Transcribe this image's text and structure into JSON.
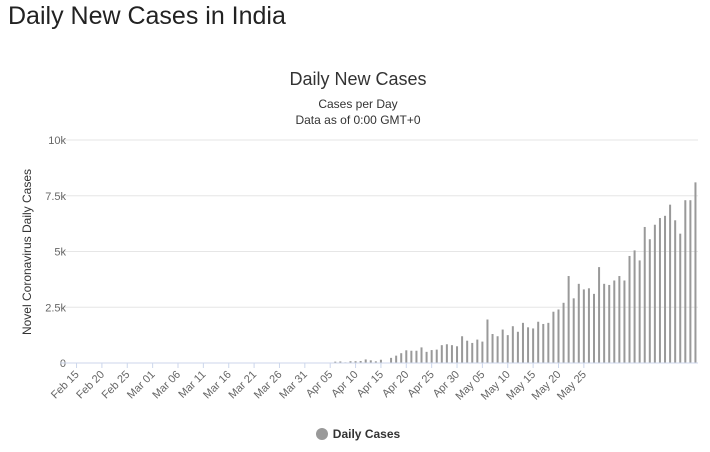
{
  "page": {
    "heading": "Daily New Cases in India"
  },
  "chart_data": {
    "type": "bar",
    "title": "Daily New Cases",
    "subtitle_lines": [
      "Cases per Day",
      "Data as of 0:00 GMT+0"
    ],
    "ylabel": "Novel Coronavirus Daily Cases",
    "xlabel": "",
    "ylim": [
      0,
      10000
    ],
    "y_ticks": [
      0,
      2500,
      5000,
      7500,
      10000
    ],
    "y_tick_labels": [
      "0",
      "2.5k",
      "5k",
      "7.5k",
      "10k"
    ],
    "x_tick_labels": [
      "Feb 15",
      "Feb 20",
      "Feb 25",
      "Mar 01",
      "Mar 06",
      "Mar 11",
      "Mar 16",
      "Mar 21",
      "Mar 26",
      "Mar 31",
      "Apr 05",
      "Apr 10",
      "Apr 15",
      "Apr 20",
      "Apr 25",
      "Apr 30",
      "May 05",
      "May 10",
      "May 15",
      "May 20",
      "May 25"
    ],
    "x_start": "Feb 15",
    "x_end": "May 29",
    "grid": true,
    "legend_position": "bottom-center",
    "series": [
      {
        "name": "Daily Cases",
        "color": "#999999",
        "values": [
          0,
          0,
          0,
          0,
          0,
          0,
          0,
          0,
          0,
          0,
          0,
          0,
          0,
          0,
          0,
          0,
          0,
          0,
          0,
          0,
          0,
          0,
          0,
          0,
          0,
          0,
          0,
          0,
          0,
          0,
          0,
          0,
          0,
          0,
          0,
          0,
          0,
          0,
          0,
          0,
          0,
          0,
          0,
          0,
          0,
          0,
          0,
          0,
          0,
          0,
          0,
          60,
          70,
          30,
          80,
          80,
          90,
          160,
          120,
          75,
          146,
          20,
          230,
          330,
          440,
          570,
          550,
          550,
          700,
          500,
          580,
          600,
          800,
          840,
          800,
          750,
          1200,
          1000,
          900,
          1050,
          960,
          1950,
          1300,
          1200,
          1500,
          1250,
          1650,
          1400,
          1800,
          1600,
          1550,
          1850,
          1750,
          1800,
          2300,
          2400,
          2700,
          3900,
          2900,
          3550,
          3300,
          3350,
          3100,
          4300,
          3550,
          3500,
          3700,
          3900,
          3700,
          4800,
          5050,
          4600,
          6100,
          5550,
          6200,
          6500,
          6600,
          7100,
          6400,
          5800,
          7300,
          7300,
          8100
        ]
      }
    ]
  }
}
